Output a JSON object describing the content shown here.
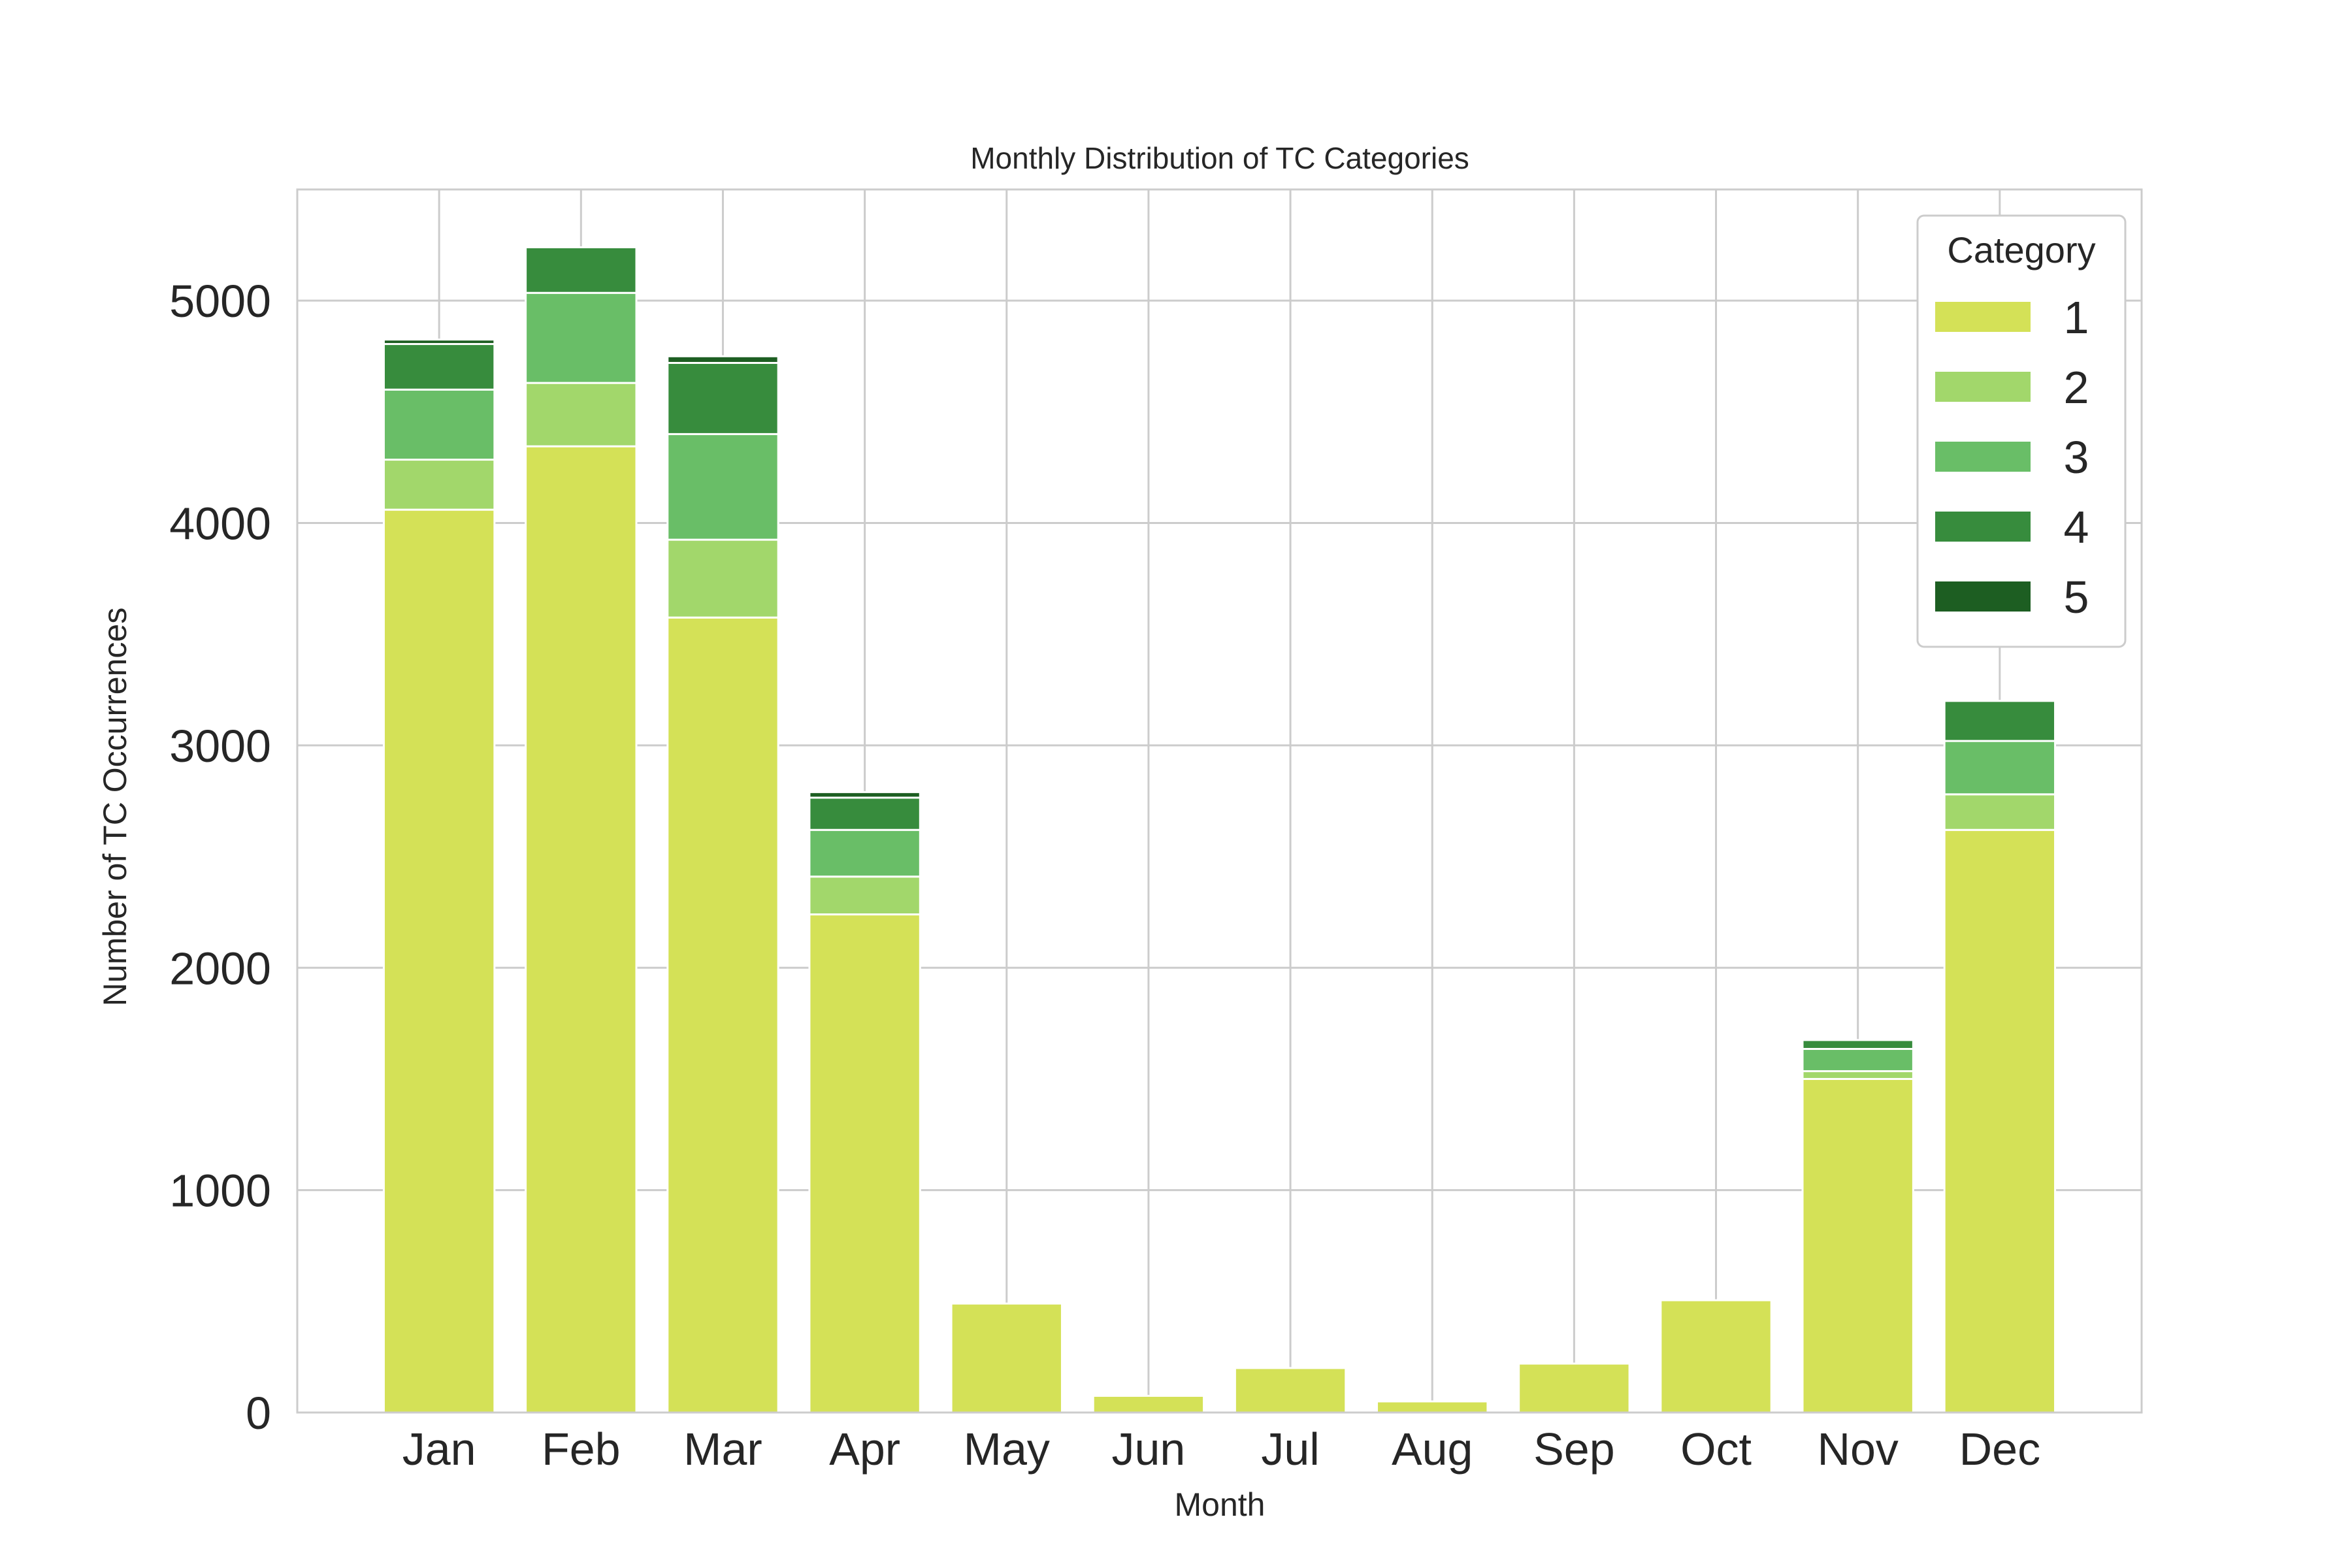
{
  "chart_data": {
    "type": "bar",
    "stacked": true,
    "title": "Monthly Distribution of TC Categories",
    "xlabel": "Month",
    "ylabel": "Number of TC Occurrences",
    "categories": [
      "Jan",
      "Feb",
      "Mar",
      "Apr",
      "May",
      "Jun",
      "Jul",
      "Aug",
      "Sep",
      "Oct",
      "Nov",
      "Dec"
    ],
    "series": [
      {
        "name": "1",
        "color": "#d4e157",
        "values": [
          4060,
          4345,
          3575,
          2240,
          490,
          75,
          200,
          50,
          220,
          505,
          1500,
          2620
        ]
      },
      {
        "name": "2",
        "color": "#a2d76b",
        "values": [
          225,
          285,
          350,
          170,
          0,
          0,
          0,
          0,
          0,
          0,
          35,
          160
        ]
      },
      {
        "name": "3",
        "color": "#69be67",
        "values": [
          315,
          405,
          475,
          210,
          0,
          0,
          0,
          0,
          0,
          0,
          100,
          240
        ]
      },
      {
        "name": "4",
        "color": "#378c3d",
        "values": [
          205,
          205,
          320,
          145,
          0,
          0,
          0,
          0,
          0,
          0,
          40,
          180
        ]
      },
      {
        "name": "5",
        "color": "#1d5e22",
        "values": [
          20,
          0,
          30,
          25,
          0,
          0,
          0,
          0,
          0,
          0,
          0,
          0
        ]
      }
    ],
    "ylim": [
      0,
      5500
    ],
    "yticks": [
      0,
      1000,
      2000,
      3000,
      4000,
      5000
    ],
    "grid": true,
    "legend": {
      "title": "Category",
      "position": "upper-right"
    }
  }
}
